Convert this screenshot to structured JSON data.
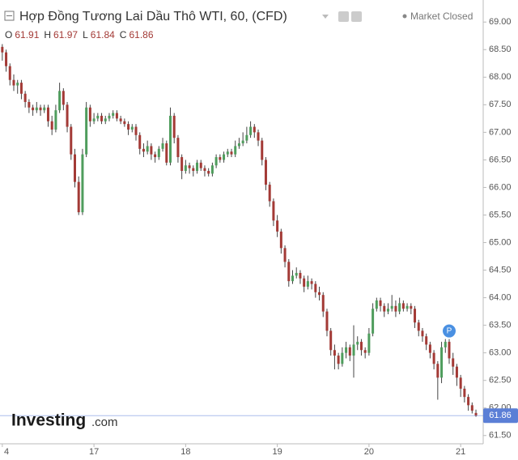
{
  "chart_data": {
    "type": "candlestick",
    "title": "Hợp Đồng Tương Lai Dầu Thô WTI, 60, (CFD)",
    "status": "Market Closed",
    "ohlc_labels": [
      "O",
      "H",
      "L",
      "C"
    ],
    "marker": "P",
    "watermark": {
      "brand": "Investing",
      "suffix": ".com"
    },
    "up_color": "#4f9d5d",
    "down_color": "#a33a36",
    "wick_color": "#444444",
    "price_line_color": "#5b7fd6",
    "ylim": [
      61.35,
      69.4
    ],
    "xlim": [
      -0.6,
      125.9
    ],
    "yticks": [
      {
        "value": 61.5,
        "label": "61.50"
      },
      {
        "value": 62,
        "label": "62.00"
      },
      {
        "value": 62.5,
        "label": "62.50"
      },
      {
        "value": 63,
        "label": "63.00"
      },
      {
        "value": 63.5,
        "label": "63.50"
      },
      {
        "value": 64,
        "label": "64.00"
      },
      {
        "value": 64.5,
        "label": "64.50"
      },
      {
        "value": 65,
        "label": "65.00"
      },
      {
        "value": 65.5,
        "label": "65.50"
      },
      {
        "value": 66,
        "label": "66.00"
      },
      {
        "value": 66.5,
        "label": "66.50"
      },
      {
        "value": 67,
        "label": "67.00"
      },
      {
        "value": 67.5,
        "label": "67.50"
      },
      {
        "value": 68,
        "label": "68.00"
      },
      {
        "value": 68.5,
        "label": "68.50"
      },
      {
        "value": 69,
        "label": "69.00"
      }
    ],
    "xticks": [
      {
        "value": 0,
        "label": "4"
      },
      {
        "value": 24,
        "label": "17"
      },
      {
        "value": 48,
        "label": "18"
      },
      {
        "value": 72,
        "label": "19"
      },
      {
        "value": 96,
        "label": "20"
      },
      {
        "value": 120,
        "label": "21"
      }
    ],
    "candles": [
      [
        68.55,
        68.6,
        68.3,
        68.45
      ],
      [
        68.45,
        68.5,
        68.1,
        68.2
      ],
      [
        68.2,
        68.25,
        67.85,
        67.95
      ],
      [
        67.95,
        68.05,
        67.75,
        67.85
      ],
      [
        67.85,
        67.95,
        67.7,
        67.9
      ],
      [
        67.9,
        67.95,
        67.6,
        67.7
      ],
      [
        67.7,
        67.75,
        67.45,
        67.55
      ],
      [
        67.55,
        67.6,
        67.35,
        67.45
      ],
      [
        67.45,
        67.5,
        67.3,
        67.4
      ],
      [
        67.4,
        67.55,
        67.35,
        67.45
      ],
      [
        67.45,
        67.5,
        67.3,
        67.4
      ],
      [
        67.4,
        67.5,
        67.35,
        67.45
      ],
      [
        67.45,
        67.5,
        67.1,
        67.2
      ],
      [
        67.2,
        67.3,
        66.95,
        67.05
      ],
      [
        67.05,
        67.5,
        67.0,
        67.4
      ],
      [
        67.4,
        67.9,
        67.35,
        67.75
      ],
      [
        67.75,
        67.8,
        67.4,
        67.5
      ],
      [
        67.5,
        67.55,
        67.0,
        67.1
      ],
      [
        67.1,
        67.15,
        66.5,
        66.6
      ],
      [
        66.6,
        66.7,
        66.0,
        66.1
      ],
      [
        66.1,
        66.2,
        65.5,
        65.55
      ],
      [
        65.55,
        66.7,
        65.5,
        66.6
      ],
      [
        66.6,
        67.55,
        66.55,
        67.45
      ],
      [
        67.45,
        67.5,
        67.1,
        67.2
      ],
      [
        67.2,
        67.35,
        67.15,
        67.25
      ],
      [
        67.25,
        67.35,
        67.2,
        67.3
      ],
      [
        67.3,
        67.35,
        67.15,
        67.2
      ],
      [
        67.2,
        67.3,
        67.15,
        67.25
      ],
      [
        67.25,
        67.35,
        67.2,
        67.3
      ],
      [
        67.3,
        67.4,
        67.25,
        67.35
      ],
      [
        67.35,
        67.4,
        67.2,
        67.25
      ],
      [
        67.25,
        67.3,
        67.15,
        67.2
      ],
      [
        67.2,
        67.25,
        67.1,
        67.15
      ],
      [
        67.15,
        67.2,
        66.95,
        67.05
      ],
      [
        67.05,
        67.15,
        67.0,
        67.1
      ],
      [
        67.1,
        67.15,
        66.85,
        66.95
      ],
      [
        66.95,
        67.0,
        66.6,
        66.7
      ],
      [
        66.7,
        66.8,
        66.55,
        66.65
      ],
      [
        66.65,
        66.85,
        66.6,
        66.75
      ],
      [
        66.75,
        66.8,
        66.5,
        66.6
      ],
      [
        66.6,
        66.65,
        66.45,
        66.55
      ],
      [
        66.55,
        66.75,
        66.5,
        66.7
      ],
      [
        66.7,
        66.9,
        66.65,
        66.8
      ],
      [
        66.8,
        66.85,
        66.4,
        66.45
      ],
      [
        66.45,
        67.45,
        66.4,
        67.3
      ],
      [
        67.3,
        67.35,
        66.8,
        66.9
      ],
      [
        66.9,
        66.95,
        66.45,
        66.55
      ],
      [
        66.55,
        66.6,
        66.15,
        66.3
      ],
      [
        66.3,
        66.5,
        66.25,
        66.4
      ],
      [
        66.4,
        66.45,
        66.25,
        66.35
      ],
      [
        66.35,
        66.4,
        66.2,
        66.3
      ],
      [
        66.3,
        66.5,
        66.25,
        66.45
      ],
      [
        66.45,
        66.5,
        66.3,
        66.35
      ],
      [
        66.35,
        66.4,
        66.2,
        66.3
      ],
      [
        66.3,
        66.35,
        66.2,
        66.25
      ],
      [
        66.25,
        66.45,
        66.2,
        66.4
      ],
      [
        66.4,
        66.6,
        66.35,
        66.55
      ],
      [
        66.55,
        66.6,
        66.45,
        66.5
      ],
      [
        66.5,
        66.65,
        66.45,
        66.6
      ],
      [
        66.6,
        66.7,
        66.55,
        66.65
      ],
      [
        66.65,
        66.7,
        66.55,
        66.6
      ],
      [
        66.6,
        66.85,
        66.55,
        66.75
      ],
      [
        66.75,
        66.9,
        66.7,
        66.8
      ],
      [
        66.8,
        67.0,
        66.75,
        66.85
      ],
      [
        66.85,
        67.1,
        66.8,
        66.95
      ],
      [
        66.95,
        67.2,
        66.9,
        67.1
      ],
      [
        67.1,
        67.15,
        66.9,
        67.0
      ],
      [
        67.0,
        67.05,
        66.75,
        66.85
      ],
      [
        66.85,
        66.9,
        66.4,
        66.5
      ],
      [
        66.5,
        66.55,
        65.95,
        66.05
      ],
      [
        66.05,
        66.1,
        65.65,
        65.75
      ],
      [
        65.75,
        65.8,
        65.3,
        65.4
      ],
      [
        65.4,
        65.5,
        65.1,
        65.2
      ],
      [
        65.2,
        65.25,
        64.8,
        64.9
      ],
      [
        64.9,
        64.95,
        64.55,
        64.65
      ],
      [
        64.65,
        64.7,
        64.2,
        64.3
      ],
      [
        64.3,
        64.5,
        64.25,
        64.4
      ],
      [
        64.4,
        64.55,
        64.35,
        64.45
      ],
      [
        64.45,
        64.5,
        64.25,
        64.35
      ],
      [
        64.35,
        64.4,
        64.1,
        64.2
      ],
      [
        64.2,
        64.4,
        64.15,
        64.3
      ],
      [
        64.3,
        64.35,
        64.15,
        64.25
      ],
      [
        64.25,
        64.3,
        64.0,
        64.1
      ],
      [
        64.1,
        64.2,
        63.95,
        64.05
      ],
      [
        64.05,
        64.1,
        63.65,
        63.75
      ],
      [
        63.75,
        63.8,
        63.3,
        63.4
      ],
      [
        63.4,
        63.45,
        62.95,
        63.05
      ],
      [
        63.05,
        63.15,
        62.7,
        62.95
      ],
      [
        62.95,
        63.0,
        62.7,
        62.8
      ],
      [
        62.8,
        63.1,
        62.75,
        63.0
      ],
      [
        63.0,
        63.2,
        62.9,
        63.1
      ],
      [
        63.1,
        63.15,
        62.85,
        62.95
      ],
      [
        62.95,
        63.5,
        62.55,
        63.15
      ],
      [
        63.15,
        63.3,
        63.05,
        63.2
      ],
      [
        63.2,
        63.25,
        62.95,
        63.05
      ],
      [
        63.05,
        63.1,
        62.9,
        63.0
      ],
      [
        63.0,
        63.45,
        62.95,
        63.35
      ],
      [
        63.35,
        63.9,
        63.3,
        63.8
      ],
      [
        63.8,
        64.0,
        63.75,
        63.95
      ],
      [
        63.95,
        64.0,
        63.75,
        63.85
      ],
      [
        63.85,
        63.9,
        63.65,
        63.75
      ],
      [
        63.75,
        63.9,
        63.7,
        63.8
      ],
      [
        63.8,
        64.05,
        63.75,
        63.85
      ],
      [
        63.85,
        63.95,
        63.65,
        63.75
      ],
      [
        63.75,
        64.0,
        63.7,
        63.9
      ],
      [
        63.9,
        63.95,
        63.75,
        63.8
      ],
      [
        63.8,
        63.9,
        63.75,
        63.85
      ],
      [
        63.85,
        63.9,
        63.7,
        63.8
      ],
      [
        63.8,
        63.85,
        63.45,
        63.55
      ],
      [
        63.55,
        63.6,
        63.3,
        63.4
      ],
      [
        63.4,
        63.45,
        63.2,
        63.3
      ],
      [
        63.3,
        63.35,
        63.05,
        63.15
      ],
      [
        63.15,
        63.2,
        62.9,
        63.0
      ],
      [
        63.0,
        63.05,
        62.7,
        62.8
      ],
      [
        62.8,
        62.85,
        62.15,
        62.55
      ],
      [
        62.55,
        63.2,
        62.45,
        63.1
      ],
      [
        63.1,
        63.25,
        63.0,
        63.2
      ],
      [
        63.2,
        63.25,
        62.8,
        62.9
      ],
      [
        62.9,
        63.0,
        62.6,
        62.75
      ],
      [
        62.75,
        62.8,
        62.4,
        62.55
      ],
      [
        62.55,
        62.6,
        62.2,
        62.35
      ],
      [
        62.35,
        62.4,
        62.1,
        62.2
      ],
      [
        62.2,
        62.25,
        61.95,
        62.05
      ],
      [
        62.05,
        62.1,
        61.9,
        61.95
      ],
      [
        61.91,
        61.97,
        61.84,
        61.86
      ]
    ]
  }
}
